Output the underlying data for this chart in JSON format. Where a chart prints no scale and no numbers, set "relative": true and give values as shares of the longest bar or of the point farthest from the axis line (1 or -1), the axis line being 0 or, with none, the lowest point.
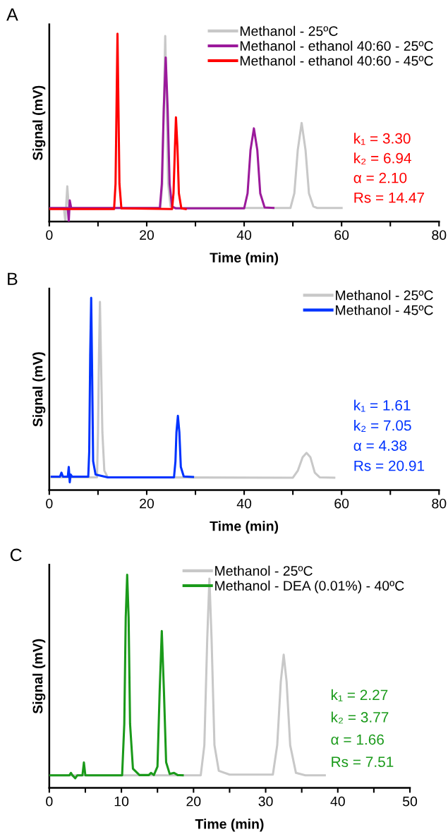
{
  "chart_data": [
    {
      "type": "line",
      "title": "A",
      "xlabel": "Time (min)",
      "ylabel": "Signal (mV)",
      "relative": true,
      "xlim": [
        0,
        80
      ],
      "xticks": [
        0,
        {
          "value": 10,
          "label": null
        },
        20,
        {
          "value": 30,
          "label": null
        },
        40,
        {
          "value": 50,
          "label": null
        },
        60,
        {
          "value": 70,
          "label": null
        },
        80
      ],
      "grid": false,
      "legend": "top right",
      "annotations": [
        "k₁ = 3.30",
        "k₂ = 6.94",
        "α = 2.10",
        "Rs = 14.47"
      ],
      "series": [
        {
          "name": "Methanol - 25ºC",
          "color": "#c8c8c8",
          "x": [
            0,
            3.0,
            3.3,
            3.5,
            3.7,
            4.0,
            4.4,
            22.8,
            23.2,
            23.5,
            23.8,
            24.1,
            24.4,
            24.9,
            25.5,
            49.5,
            50.3,
            51,
            51.8,
            52.6,
            53.3,
            54.2,
            55,
            60
          ],
          "values": [
            0.072,
            0.072,
            0.0,
            0.1,
            0.187,
            0.08,
            0.072,
            0.072,
            0.2,
            0.6,
            0.988,
            0.6,
            0.2,
            0.08,
            0.072,
            0.072,
            0.15,
            0.38,
            0.525,
            0.38,
            0.15,
            0.08,
            0.072,
            0.072
          ]
        },
        {
          "name": "Methanol - ethanol 40:60 - 25ºC",
          "color": "#9b1a9b",
          "x": [
            0,
            3.8,
            4.0,
            4.2,
            4.5,
            22.7,
            23.1,
            23.5,
            23.9,
            24.3,
            24.7,
            25.2,
            26,
            40,
            40.7,
            41.3,
            42,
            42.7,
            43.3,
            44.2,
            46
          ],
          "values": [
            0.072,
            0.072,
            0.0,
            0.112,
            0.072,
            0.072,
            0.2,
            0.6,
            0.873,
            0.6,
            0.2,
            0.08,
            0.07,
            0.07,
            0.15,
            0.38,
            0.496,
            0.38,
            0.15,
            0.075,
            0.072
          ]
        },
        {
          "name": "Methanol - ethanol 40:60 - 45ºC",
          "color": "#ff0000",
          "x": [
            0,
            13.3,
            13.6,
            13.8,
            14.0,
            14.2,
            14.4,
            14.8,
            25.2,
            25.5,
            25.8,
            26.0,
            26.3,
            26.6,
            27.1,
            28
          ],
          "values": [
            0.066,
            0.066,
            0.2,
            0.6,
            1.0,
            0.6,
            0.2,
            0.07,
            0.066,
            0.15,
            0.4,
            0.555,
            0.4,
            0.15,
            0.07,
            0.066
          ]
        }
      ]
    },
    {
      "type": "line",
      "title": "B",
      "xlabel": "Time (min)",
      "ylabel": "Signal (mV)",
      "relative": true,
      "xlim": [
        0,
        80
      ],
      "xticks": [
        0,
        {
          "value": 10,
          "label": null
        },
        20,
        {
          "value": 30,
          "label": null
        },
        40,
        {
          "value": 50,
          "label": null
        },
        60,
        {
          "value": 70,
          "label": null
        },
        80
      ],
      "grid": false,
      "legend": "top right",
      "annotations": [
        "k₁ = 1.61",
        "k₂ = 7.05",
        "α = 4.38",
        "Rs = 20.91"
      ],
      "series": [
        {
          "name": "Methanol - 25ºC",
          "color": "#c8c8c8",
          "x": [
            0.5,
            9.8,
            10.0,
            10.2,
            10.4,
            10.6,
            10.9,
            11.3,
            12,
            50,
            51,
            52,
            52.8,
            53.6,
            54.5,
            55.5,
            58.5
          ],
          "values": [
            0.066,
            0.066,
            0.3,
            0.7,
            0.979,
            0.7,
            0.3,
            0.1,
            0.066,
            0.064,
            0.1,
            0.17,
            0.193,
            0.17,
            0.09,
            0.066,
            0.064
          ]
        },
        {
          "name": "Methanol - 45ºC",
          "color": "#0033ff",
          "x": [
            0.5,
            2.2,
            2.5,
            2.8,
            3.8,
            4.0,
            4.2,
            4.4,
            4.7,
            8.0,
            8.2,
            8.4,
            8.6,
            8.8,
            9.0,
            9.5,
            12,
            25.6,
            25.9,
            26.1,
            26.4,
            26.7,
            27.0,
            27.6,
            29.5
          ],
          "values": [
            0.069,
            0.069,
            0.09,
            0.069,
            0.069,
            0.12,
            0.04,
            0.08,
            0.069,
            0.069,
            0.2,
            0.7,
            1.0,
            0.6,
            0.15,
            0.08,
            0.066,
            0.066,
            0.15,
            0.3,
            0.386,
            0.3,
            0.12,
            0.07,
            0.068
          ]
        }
      ]
    },
    {
      "type": "line",
      "title": "C",
      "xlabel": "Time (min)",
      "ylabel": "Signal (mV)",
      "relative": true,
      "xlim": [
        0,
        50
      ],
      "xticks": [
        0,
        {
          "value": 5,
          "label": null
        },
        10,
        {
          "value": 15,
          "label": null
        },
        20,
        {
          "value": 25,
          "label": null
        },
        30,
        {
          "value": 35,
          "label": null
        },
        40,
        {
          "value": 45,
          "label": null
        },
        50
      ],
      "grid": false,
      "legend": "top right",
      "annotations": [
        "k₁ = 2.27",
        "k₂ = 3.77",
        "α = 1.66",
        "Rs = 7.51"
      ],
      "series": [
        {
          "name": "Methanol - 25ºC",
          "color": "#c8c8c8",
          "x": [
            0,
            21.0,
            21.5,
            21.9,
            22.2,
            22.5,
            22.9,
            23.5,
            25,
            31,
            31.6,
            32.1,
            32.5,
            32.9,
            33.4,
            34.2,
            35.5,
            38.2
          ],
          "values": [
            0.059,
            0.059,
            0.2,
            0.7,
            0.982,
            0.7,
            0.2,
            0.08,
            0.062,
            0.062,
            0.2,
            0.5,
            0.625,
            0.5,
            0.2,
            0.07,
            0.059,
            0.059
          ]
        },
        {
          "name": "Methanol - DEA (0.01%) - 40ºC",
          "color": "#1a9a1a",
          "x": [
            0,
            2.8,
            3.0,
            3.2,
            3.6,
            3.9,
            4.6,
            4.8,
            5.0,
            10.1,
            10.4,
            10.6,
            10.8,
            11.0,
            11.2,
            11.6,
            12.5,
            13.8,
            14.1,
            14.5,
            15.0,
            15.3,
            15.6,
            15.9,
            16.2,
            16.7,
            17.3,
            17.8,
            18.5
          ],
          "values": [
            0.059,
            0.059,
            0.07,
            0.059,
            0.045,
            0.059,
            0.059,
            0.119,
            0.059,
            0.059,
            0.3,
            0.8,
            1.0,
            0.8,
            0.3,
            0.09,
            0.06,
            0.06,
            0.07,
            0.06,
            0.1,
            0.45,
            0.736,
            0.45,
            0.12,
            0.065,
            0.07,
            0.06,
            0.059
          ]
        }
      ]
    }
  ]
}
